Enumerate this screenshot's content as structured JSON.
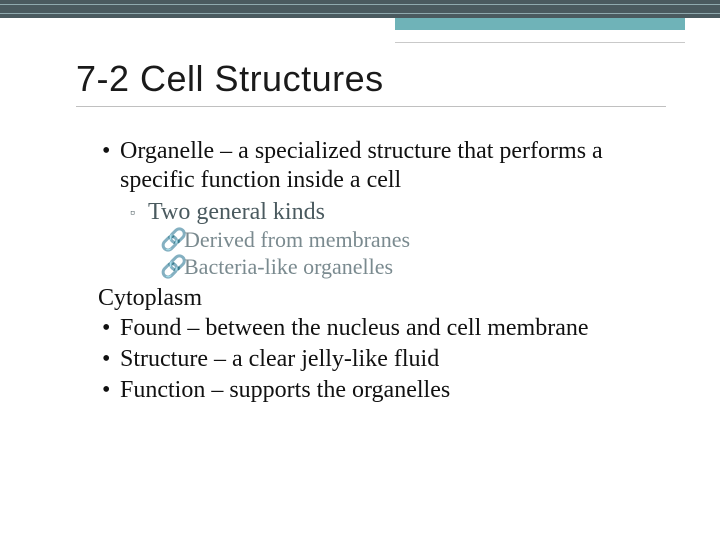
{
  "colors": {
    "top_border": "#4a5a5f",
    "top_border_line": "#8fa9ae",
    "accent": "#6fb3b8",
    "title": "#1a1a1a",
    "body_text": "#111111",
    "l2_text": "#4a5a5f",
    "l3_text": "#7a8a8f",
    "rule": "#c0c0c0",
    "background": "#ffffff"
  },
  "typography": {
    "title_font": "Verdana",
    "title_size_pt": 27,
    "body_font": "Georgia",
    "body_size_pt": 18,
    "l3_size_pt": 16
  },
  "title": "7-2 Cell Structures",
  "lines": {
    "organelle": "Organelle – a specialized structure that performs a specific function inside a cell",
    "two_kinds": "Two general kinds",
    "derived": "Derived from membranes",
    "bacteria_like": "Bacteria-like organelles",
    "cytoplasm": "Cytoplasm",
    "found": "Found – between the nucleus and cell membrane",
    "structure": "Structure – a clear jelly-like fluid",
    "function": "Function – supports the organelles"
  },
  "bullets": {
    "dot": "•",
    "square": "▫",
    "link": "🔗"
  }
}
